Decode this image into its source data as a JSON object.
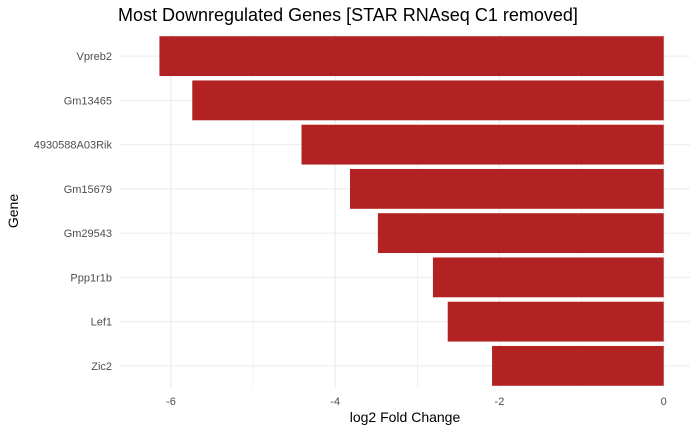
{
  "chart_data": {
    "type": "bar",
    "orientation": "horizontal",
    "title": "Most Downregulated Genes [STAR RNAseq C1 removed]",
    "xlabel": "log2 Fold Change",
    "ylabel": "Gene",
    "categories": [
      "Vpreb2",
      "Gm13465",
      "4930588A03Rik",
      "Gm15679",
      "Gm29543",
      "Ppp1r1b",
      "Lef1",
      "Zic2"
    ],
    "values": [
      -6.14,
      -5.74,
      -4.41,
      -3.82,
      -3.48,
      -2.81,
      -2.63,
      -2.09
    ],
    "xlim": [
      -6.62,
      0.32
    ],
    "xticks": [
      -6,
      -4,
      -2,
      0
    ],
    "xtick_labels": [
      "-6",
      "-4",
      "-2",
      "0"
    ],
    "grid": true,
    "legend": "none",
    "bar_color": "#b22222",
    "grid_color": "#ebebeb"
  }
}
